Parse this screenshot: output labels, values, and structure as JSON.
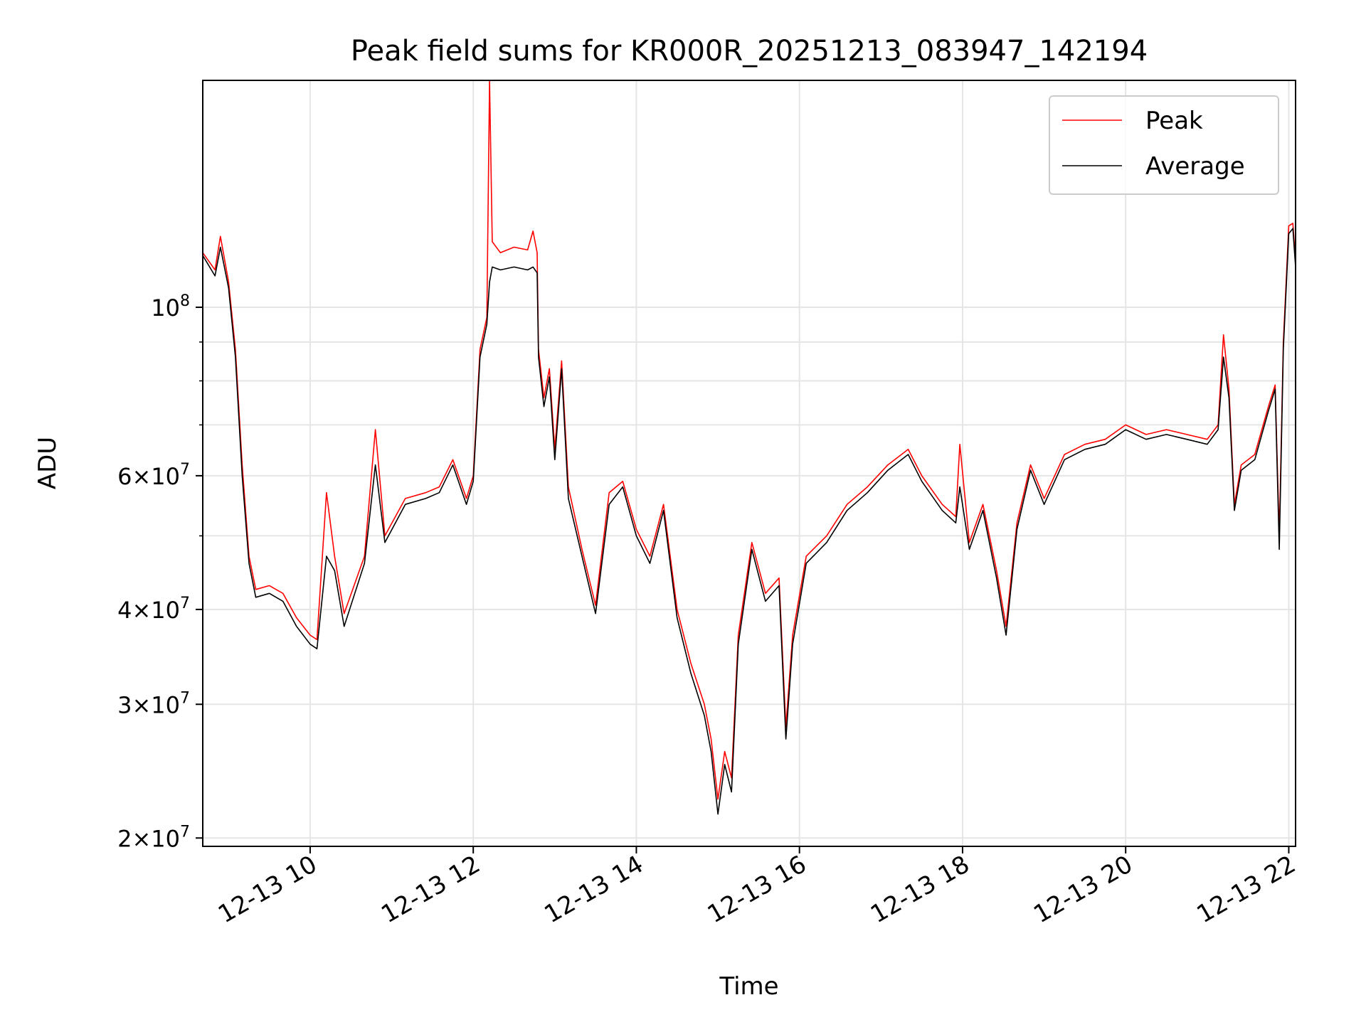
{
  "chart_data": {
    "type": "line",
    "title": "Peak field sums for KR000R_20251213_083947_142194",
    "xlabel": "Time",
    "ylabel": "ADU",
    "y_scale": "log",
    "ylim": [
      19500000,
      199000000
    ],
    "xlim": [
      "2025-12-13 08:41",
      "2025-12-13 22:05"
    ],
    "grid": true,
    "legend": "top-right",
    "x_ticks": [
      {
        "value": "2025-12-13 10:00",
        "label": "12-13 10"
      },
      {
        "value": "2025-12-13 12:00",
        "label": "12-13 12"
      },
      {
        "value": "2025-12-13 14:00",
        "label": "12-13 14"
      },
      {
        "value": "2025-12-13 16:00",
        "label": "12-13 16"
      },
      {
        "value": "2025-12-13 18:00",
        "label": "12-13 18"
      },
      {
        "value": "2025-12-13 20:00",
        "label": "12-13 20"
      },
      {
        "value": "2025-12-13 22:00",
        "label": "12-13 22"
      }
    ],
    "y_ticks": [
      {
        "value": 20000000,
        "mantissa": "2",
        "exponent": "7"
      },
      {
        "value": 30000000,
        "mantissa": "3",
        "exponent": "7"
      },
      {
        "value": 40000000,
        "mantissa": "4",
        "exponent": "7"
      },
      {
        "value": 60000000,
        "mantissa": "6",
        "exponent": "7"
      },
      {
        "value": 100000000,
        "mantissa": "",
        "exponent": "8"
      }
    ],
    "series": [
      {
        "name": "Peak",
        "color": "#ff0000",
        "points": [
          [
            "2025-12-13 08:41",
            118000000
          ],
          [
            "2025-12-13 08:50",
            112000000
          ],
          [
            "2025-12-13 08:54",
            124000000
          ],
          [
            "2025-12-13 09:00",
            108000000
          ],
          [
            "2025-12-13 09:05",
            88000000
          ],
          [
            "2025-12-13 09:10",
            62000000
          ],
          [
            "2025-12-13 09:15",
            47000000
          ],
          [
            "2025-12-13 09:20",
            42500000
          ],
          [
            "2025-12-13 09:30",
            43000000
          ],
          [
            "2025-12-13 09:40",
            42000000
          ],
          [
            "2025-12-13 09:50",
            39000000
          ],
          [
            "2025-12-13 10:00",
            37000000
          ],
          [
            "2025-12-13 10:05",
            36500000
          ],
          [
            "2025-12-13 10:12",
            57000000
          ],
          [
            "2025-12-13 10:18",
            47000000
          ],
          [
            "2025-12-13 10:25",
            39500000
          ],
          [
            "2025-12-13 10:40",
            47000000
          ],
          [
            "2025-12-13 10:48",
            69000000
          ],
          [
            "2025-12-13 10:55",
            50000000
          ],
          [
            "2025-12-13 11:10",
            56000000
          ],
          [
            "2025-12-13 11:25",
            57000000
          ],
          [
            "2025-12-13 11:35",
            58000000
          ],
          [
            "2025-12-13 11:45",
            63000000
          ],
          [
            "2025-12-13 11:55",
            56000000
          ],
          [
            "2025-12-13 12:00",
            60000000
          ],
          [
            "2025-12-13 12:05",
            88000000
          ],
          [
            "2025-12-13 12:10",
            97000000
          ],
          [
            "2025-12-13 12:12",
            199000000
          ],
          [
            "2025-12-13 12:14",
            122000000
          ],
          [
            "2025-12-13 12:20",
            118000000
          ],
          [
            "2025-12-13 12:30",
            120000000
          ],
          [
            "2025-12-13 12:40",
            119000000
          ],
          [
            "2025-12-13 12:44",
            126000000
          ],
          [
            "2025-12-13 12:47",
            118000000
          ],
          [
            "2025-12-13 12:48",
            88000000
          ],
          [
            "2025-12-13 12:52",
            76000000
          ],
          [
            "2025-12-13 12:56",
            83000000
          ],
          [
            "2025-12-13 13:00",
            65000000
          ],
          [
            "2025-12-13 13:05",
            85000000
          ],
          [
            "2025-12-13 13:10",
            58000000
          ],
          [
            "2025-12-13 13:20",
            48000000
          ],
          [
            "2025-12-13 13:30",
            40500000
          ],
          [
            "2025-12-13 13:40",
            57000000
          ],
          [
            "2025-12-13 13:50",
            59000000
          ],
          [
            "2025-12-13 14:00",
            51000000
          ],
          [
            "2025-12-13 14:10",
            47000000
          ],
          [
            "2025-12-13 14:20",
            55000000
          ],
          [
            "2025-12-13 14:30",
            40000000
          ],
          [
            "2025-12-13 14:40",
            34000000
          ],
          [
            "2025-12-13 14:50",
            30000000
          ],
          [
            "2025-12-13 14:55",
            27000000
          ],
          [
            "2025-12-13 15:00",
            22500000
          ],
          [
            "2025-12-13 15:05",
            26000000
          ],
          [
            "2025-12-13 15:10",
            24000000
          ],
          [
            "2025-12-13 15:15",
            37000000
          ],
          [
            "2025-12-13 15:25",
            49000000
          ],
          [
            "2025-12-13 15:35",
            42000000
          ],
          [
            "2025-12-13 15:45",
            44000000
          ],
          [
            "2025-12-13 15:50",
            28000000
          ],
          [
            "2025-12-13 15:55",
            37000000
          ],
          [
            "2025-12-13 16:05",
            47000000
          ],
          [
            "2025-12-13 16:20",
            50000000
          ],
          [
            "2025-12-13 16:35",
            55000000
          ],
          [
            "2025-12-13 16:50",
            58000000
          ],
          [
            "2025-12-13 17:05",
            62000000
          ],
          [
            "2025-12-13 17:20",
            65000000
          ],
          [
            "2025-12-13 17:30",
            60000000
          ],
          [
            "2025-12-13 17:45",
            55000000
          ],
          [
            "2025-12-13 17:55",
            53000000
          ],
          [
            "2025-12-13 17:58",
            66000000
          ],
          [
            "2025-12-13 18:05",
            49000000
          ],
          [
            "2025-12-13 18:15",
            55000000
          ],
          [
            "2025-12-13 18:25",
            45000000
          ],
          [
            "2025-12-13 18:32",
            38000000
          ],
          [
            "2025-12-13 18:40",
            52000000
          ],
          [
            "2025-12-13 18:50",
            62000000
          ],
          [
            "2025-12-13 19:00",
            56000000
          ],
          [
            "2025-12-13 19:15",
            64000000
          ],
          [
            "2025-12-13 19:30",
            66000000
          ],
          [
            "2025-12-13 19:45",
            67000000
          ],
          [
            "2025-12-13 20:00",
            70000000
          ],
          [
            "2025-12-13 20:15",
            68000000
          ],
          [
            "2025-12-13 20:30",
            69000000
          ],
          [
            "2025-12-13 20:45",
            68000000
          ],
          [
            "2025-12-13 21:00",
            67000000
          ],
          [
            "2025-12-13 21:08",
            70000000
          ],
          [
            "2025-12-13 21:12",
            92000000
          ],
          [
            "2025-12-13 21:16",
            78000000
          ],
          [
            "2025-12-13 21:20",
            55000000
          ],
          [
            "2025-12-13 21:25",
            62000000
          ],
          [
            "2025-12-13 21:35",
            64000000
          ],
          [
            "2025-12-13 21:45",
            74000000
          ],
          [
            "2025-12-13 21:50",
            79000000
          ],
          [
            "2025-12-13 21:53",
            50000000
          ],
          [
            "2025-12-13 21:56",
            90000000
          ],
          [
            "2025-12-13 22:00",
            128000000
          ],
          [
            "2025-12-13 22:03",
            129000000
          ],
          [
            "2025-12-13 22:05",
            115000000
          ]
        ]
      },
      {
        "name": "Average",
        "color": "#000000",
        "points": [
          [
            "2025-12-13 08:41",
            117000000
          ],
          [
            "2025-12-13 08:50",
            110000000
          ],
          [
            "2025-12-13 08:54",
            120000000
          ],
          [
            "2025-12-13 09:00",
            106000000
          ],
          [
            "2025-12-13 09:05",
            86000000
          ],
          [
            "2025-12-13 09:10",
            60000000
          ],
          [
            "2025-12-13 09:15",
            46000000
          ],
          [
            "2025-12-13 09:20",
            41500000
          ],
          [
            "2025-12-13 09:30",
            42000000
          ],
          [
            "2025-12-13 09:40",
            41000000
          ],
          [
            "2025-12-13 09:50",
            38000000
          ],
          [
            "2025-12-13 10:00",
            36000000
          ],
          [
            "2025-12-13 10:05",
            35500000
          ],
          [
            "2025-12-13 10:12",
            47000000
          ],
          [
            "2025-12-13 10:18",
            45000000
          ],
          [
            "2025-12-13 10:25",
            38000000
          ],
          [
            "2025-12-13 10:40",
            46000000
          ],
          [
            "2025-12-13 10:48",
            62000000
          ],
          [
            "2025-12-13 10:55",
            49000000
          ],
          [
            "2025-12-13 11:10",
            55000000
          ],
          [
            "2025-12-13 11:25",
            56000000
          ],
          [
            "2025-12-13 11:35",
            57000000
          ],
          [
            "2025-12-13 11:45",
            62000000
          ],
          [
            "2025-12-13 11:55",
            55000000
          ],
          [
            "2025-12-13 12:00",
            59000000
          ],
          [
            "2025-12-13 12:05",
            86000000
          ],
          [
            "2025-12-13 12:10",
            95000000
          ],
          [
            "2025-12-13 12:12",
            108000000
          ],
          [
            "2025-12-13 12:14",
            113000000
          ],
          [
            "2025-12-13 12:20",
            112000000
          ],
          [
            "2025-12-13 12:30",
            113000000
          ],
          [
            "2025-12-13 12:40",
            112000000
          ],
          [
            "2025-12-13 12:44",
            113000000
          ],
          [
            "2025-12-13 12:47",
            111000000
          ],
          [
            "2025-12-13 12:48",
            86000000
          ],
          [
            "2025-12-13 12:52",
            74000000
          ],
          [
            "2025-12-13 12:56",
            81000000
          ],
          [
            "2025-12-13 13:00",
            63000000
          ],
          [
            "2025-12-13 13:05",
            83000000
          ],
          [
            "2025-12-13 13:10",
            56000000
          ],
          [
            "2025-12-13 13:20",
            47000000
          ],
          [
            "2025-12-13 13:30",
            39500000
          ],
          [
            "2025-12-13 13:40",
            55000000
          ],
          [
            "2025-12-13 13:50",
            58000000
          ],
          [
            "2025-12-13 14:00",
            50000000
          ],
          [
            "2025-12-13 14:10",
            46000000
          ],
          [
            "2025-12-13 14:20",
            54000000
          ],
          [
            "2025-12-13 14:30",
            39000000
          ],
          [
            "2025-12-13 14:40",
            33000000
          ],
          [
            "2025-12-13 14:50",
            29000000
          ],
          [
            "2025-12-13 14:55",
            26000000
          ],
          [
            "2025-12-13 15:00",
            21500000
          ],
          [
            "2025-12-13 15:05",
            25000000
          ],
          [
            "2025-12-13 15:10",
            23000000
          ],
          [
            "2025-12-13 15:15",
            36000000
          ],
          [
            "2025-12-13 15:25",
            48000000
          ],
          [
            "2025-12-13 15:35",
            41000000
          ],
          [
            "2025-12-13 15:45",
            43000000
          ],
          [
            "2025-12-13 15:50",
            27000000
          ],
          [
            "2025-12-13 15:55",
            36000000
          ],
          [
            "2025-12-13 16:05",
            46000000
          ],
          [
            "2025-12-13 16:20",
            49000000
          ],
          [
            "2025-12-13 16:35",
            54000000
          ],
          [
            "2025-12-13 16:50",
            57000000
          ],
          [
            "2025-12-13 17:05",
            61000000
          ],
          [
            "2025-12-13 17:20",
            64000000
          ],
          [
            "2025-12-13 17:30",
            59000000
          ],
          [
            "2025-12-13 17:45",
            54000000
          ],
          [
            "2025-12-13 17:55",
            52000000
          ],
          [
            "2025-12-13 17:58",
            58000000
          ],
          [
            "2025-12-13 18:05",
            48000000
          ],
          [
            "2025-12-13 18:15",
            54000000
          ],
          [
            "2025-12-13 18:25",
            44000000
          ],
          [
            "2025-12-13 18:32",
            37000000
          ],
          [
            "2025-12-13 18:40",
            51000000
          ],
          [
            "2025-12-13 18:50",
            61000000
          ],
          [
            "2025-12-13 19:00",
            55000000
          ],
          [
            "2025-12-13 19:15",
            63000000
          ],
          [
            "2025-12-13 19:30",
            65000000
          ],
          [
            "2025-12-13 19:45",
            66000000
          ],
          [
            "2025-12-13 20:00",
            69000000
          ],
          [
            "2025-12-13 20:15",
            67000000
          ],
          [
            "2025-12-13 20:30",
            68000000
          ],
          [
            "2025-12-13 20:45",
            67000000
          ],
          [
            "2025-12-13 21:00",
            66000000
          ],
          [
            "2025-12-13 21:08",
            69000000
          ],
          [
            "2025-12-13 21:12",
            86000000
          ],
          [
            "2025-12-13 21:16",
            76000000
          ],
          [
            "2025-12-13 21:20",
            54000000
          ],
          [
            "2025-12-13 21:25",
            61000000
          ],
          [
            "2025-12-13 21:35",
            63000000
          ],
          [
            "2025-12-13 21:45",
            73000000
          ],
          [
            "2025-12-13 21:50",
            78000000
          ],
          [
            "2025-12-13 21:53",
            48000000
          ],
          [
            "2025-12-13 21:56",
            88000000
          ],
          [
            "2025-12-13 22:00",
            125000000
          ],
          [
            "2025-12-13 22:03",
            127000000
          ],
          [
            "2025-12-13 22:05",
            113000000
          ]
        ]
      }
    ]
  }
}
